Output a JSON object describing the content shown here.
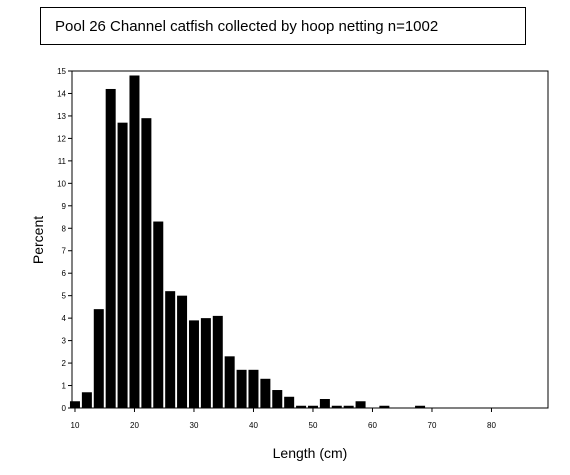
{
  "chart_data": {
    "type": "bar",
    "title": "Pool 26 Channel catfish collected by hoop netting n=1002",
    "xlabel": "Length (cm)",
    "ylabel": "Percent",
    "xlim": [
      9.5,
      89.5
    ],
    "ylim": [
      0,
      15
    ],
    "grid": false,
    "legend": "none",
    "bar_color": "#000000",
    "x_ticks": [
      "10",
      "20",
      "30",
      "40",
      "50",
      "60",
      "70",
      "80"
    ],
    "x_tick_values": [
      10,
      20,
      30,
      40,
      50,
      60,
      70,
      80
    ],
    "y_ticks": [
      "0",
      "1",
      "2",
      "3",
      "4",
      "5",
      "6",
      "7",
      "8",
      "9",
      "10",
      "11",
      "12",
      "13",
      "14",
      "15"
    ],
    "y_tick_values": [
      0,
      1,
      2,
      3,
      4,
      5,
      6,
      7,
      8,
      9,
      10,
      11,
      12,
      13,
      14,
      15
    ],
    "bins": [
      10,
      12,
      14,
      16,
      18,
      20,
      22,
      24,
      26,
      28,
      30,
      32,
      34,
      36,
      38,
      40,
      42,
      44,
      46,
      48,
      50,
      52,
      54,
      56,
      58,
      60,
      62,
      64,
      66,
      68
    ],
    "values": [
      0.3,
      0.7,
      4.4,
      14.2,
      12.7,
      14.8,
      12.9,
      8.3,
      5.2,
      5.0,
      3.9,
      4.0,
      4.1,
      2.3,
      1.7,
      1.7,
      1.3,
      0.8,
      0.5,
      0.1,
      0.1,
      0.4,
      0.1,
      0.1,
      0.3,
      0.0,
      0.1,
      0.0,
      0.0,
      0.1
    ]
  }
}
